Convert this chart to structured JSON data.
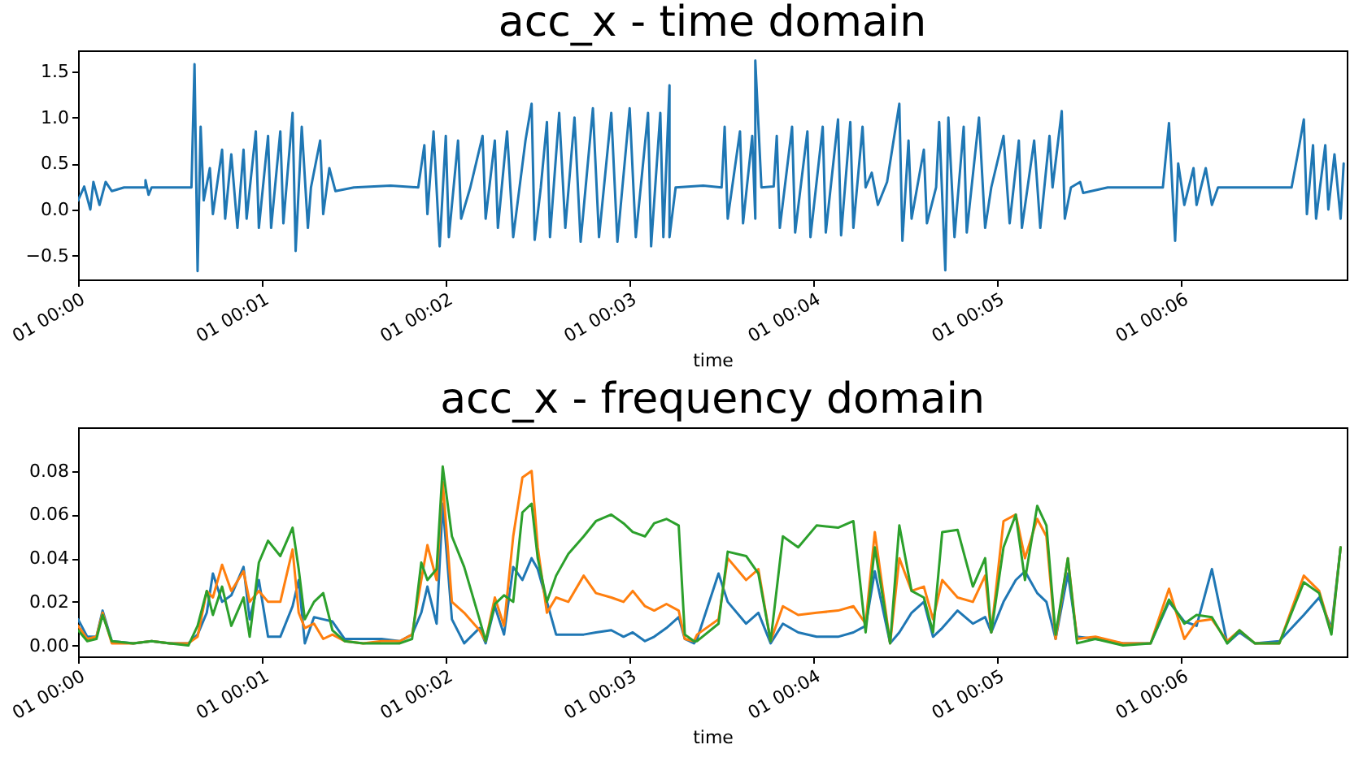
{
  "chart_data": [
    {
      "type": "line",
      "title": "acc_x - time domain",
      "xlabel": "time",
      "color": "#1f77b4",
      "x": [
        "--01-01T00:00:00",
        "--01-01T00:00:02",
        "--01-01T00:00:04",
        "--01-01T00:00:05",
        "--01-01T00:00:07",
        "--01-01T00:00:09",
        "--01-01T00:00:11",
        "--01-01T00:00:15",
        "--01-01T00:00:22",
        "--01-01T00:00:22",
        "--01-01T00:00:23",
        "--01-01T00:00:24",
        "--01-01T00:00:37",
        "--01-01T00:00:38",
        "--01-01T00:00:39",
        "--01-01T00:00:40",
        "--01-01T00:00:41",
        "--01-01T00:00:43",
        "--01-01T00:00:44",
        "--01-01T00:00:47",
        "--01-01T00:00:48",
        "--01-01T00:00:50",
        "--01-01T00:00:52",
        "--01-01T00:00:54",
        "--01-01T00:00:55",
        "--01-01T00:00:58",
        "--01-01T00:00:59",
        "--01-01T00:01:02",
        "--01-01T00:01:03",
        "--01-01T00:01:06",
        "--01-01T00:01:07",
        "--01-01T00:01:10",
        "--01-01T00:01:11",
        "--01-01T00:01:13",
        "--01-01T00:01:15",
        "--01-01T00:01:16",
        "--01-01T00:01:19",
        "--01-01T00:01:20",
        "--01-01T00:01:22",
        "--01-01T00:01:24",
        "--01-01T00:01:30",
        "--01-01T00:01:42",
        "--01-01T00:01:51",
        "--01-01T00:01:53",
        "--01-01T00:01:54",
        "--01-01T00:01:56",
        "--01-01T00:01:58",
        "--01-01T00:02:00",
        "--01-01T00:02:01",
        "--01-01T00:02:04",
        "--01-01T00:02:05",
        "--01-01T00:02:08",
        "--01-01T00:02:12",
        "--01-01T00:02:13",
        "--01-01T00:02:16",
        "--01-01T00:02:17",
        "--01-01T00:02:20",
        "--01-01T00:02:22",
        "--01-01T00:02:26",
        "--01-01T00:02:28",
        "--01-01T00:02:29",
        "--01-01T00:02:31",
        "--01-01T00:02:33",
        "--01-01T00:02:34",
        "--01-01T00:02:37",
        "--01-01T00:02:39",
        "--01-01T00:02:42",
        "--01-01T00:02:44",
        "--01-01T00:02:48",
        "--01-01T00:02:50",
        "--01-01T00:02:54",
        "--01-01T00:02:56",
        "--01-01T00:03:00",
        "--01-01T00:03:02",
        "--01-01T00:03:06",
        "--01-01T00:03:07",
        "--01-01T00:03:10",
        "--01-01T00:03:11",
        "--01-01T00:03:13",
        "--01-01T00:03:13",
        "--01-01T00:03:15",
        "--01-01T00:03:24",
        "--01-01T00:03:30",
        "--01-01T00:03:31",
        "--01-01T00:03:32",
        "--01-01T00:03:36",
        "--01-01T00:03:37",
        "--01-01T00:03:40",
        "--01-01T00:03:41",
        "--01-01T00:03:41",
        "--01-01T00:03:43",
        "--01-01T00:03:47",
        "--01-01T00:03:48",
        "--01-01T00:03:49",
        "--01-01T00:03:53",
        "--01-01T00:03:54",
        "--01-01T00:03:58",
        "--01-01T00:03:59",
        "--01-01T00:04:03",
        "--01-01T00:04:04",
        "--01-01T00:04:08",
        "--01-01T00:04:09",
        "--01-01T00:04:12",
        "--01-01T00:04:13",
        "--01-01T00:04:16",
        "--01-01T00:04:17",
        "--01-01T00:04:19",
        "--01-01T00:04:21",
        "--01-01T00:04:24",
        "--01-01T00:04:28",
        "--01-01T00:04:29",
        "--01-01T00:04:31",
        "--01-01T00:04:32",
        "--01-01T00:04:36",
        "--01-01T00:04:37",
        "--01-01T00:04:40",
        "--01-01T00:04:41",
        "--01-01T00:04:43",
        "--01-01T00:04:44",
        "--01-01T00:04:46",
        "--01-01T00:04:49",
        "--01-01T00:04:50",
        "--01-01T00:04:54",
        "--01-01T00:04:56",
        "--01-01T00:04:58",
        "--01-01T00:05:02",
        "--01-01T00:05:04",
        "--01-01T00:05:07",
        "--01-01T00:05:08",
        "--01-01T00:05:12",
        "--01-01T00:05:14",
        "--01-01T00:05:17",
        "--01-01T00:05:18",
        "--01-01T00:05:21",
        "--01-01T00:05:22",
        "--01-01T00:05:24",
        "--01-01T00:05:27",
        "--01-01T00:05:28",
        "--01-01T00:05:36",
        "--01-01T00:05:54",
        "--01-01T00:05:56",
        "--01-01T00:05:58",
        "--01-01T00:05:59",
        "--01-01T00:06:01",
        "--01-01T00:06:04",
        "--01-01T00:06:05",
        "--01-01T00:06:08",
        "--01-01T00:06:10",
        "--01-01T00:06:12",
        "--01-01T00:06:36",
        "--01-01T00:06:38",
        "--01-01T00:06:40",
        "--01-01T00:06:41",
        "--01-01T00:06:43",
        "--01-01T00:06:44",
        "--01-01T00:06:47",
        "--01-01T00:06:48",
        "--01-01T00:06:50",
        "--01-01T00:06:52",
        "--01-01T00:06:53"
      ],
      "values": [
        0.1,
        0.25,
        0.0,
        0.3,
        0.05,
        0.3,
        0.2,
        0.24,
        0.24,
        0.32,
        0.16,
        0.24,
        0.24,
        1.58,
        -0.67,
        0.9,
        0.1,
        0.45,
        -0.05,
        0.65,
        -0.1,
        0.6,
        -0.2,
        0.65,
        -0.1,
        0.85,
        -0.2,
        0.8,
        -0.2,
        0.85,
        -0.15,
        1.05,
        -0.45,
        0.9,
        -0.2,
        0.24,
        0.75,
        -0.05,
        0.45,
        0.2,
        0.24,
        0.26,
        0.24,
        0.7,
        -0.05,
        0.85,
        -0.4,
        0.8,
        -0.3,
        0.75,
        -0.1,
        0.24,
        0.8,
        -0.1,
        0.75,
        -0.2,
        0.85,
        -0.3,
        0.75,
        1.15,
        -0.33,
        0.24,
        0.95,
        -0.3,
        1.05,
        -0.2,
        1.0,
        -0.35,
        1.1,
        -0.3,
        1.05,
        -0.35,
        1.1,
        -0.3,
        1.05,
        -0.4,
        1.05,
        -0.3,
        1.35,
        -0.3,
        0.24,
        0.26,
        0.24,
        0.9,
        -0.1,
        0.85,
        -0.15,
        0.8,
        -0.1,
        1.62,
        0.24,
        0.25,
        0.8,
        -0.2,
        0.9,
        -0.25,
        0.85,
        -0.3,
        0.9,
        -0.25,
        0.98,
        -0.28,
        0.95,
        -0.2,
        0.9,
        0.24,
        0.4,
        0.05,
        0.3,
        1.15,
        -0.34,
        0.75,
        -0.1,
        0.65,
        -0.15,
        0.24,
        0.95,
        -0.66,
        1.0,
        -0.3,
        0.9,
        -0.25,
        1.0,
        -0.2,
        0.24,
        0.8,
        -0.15,
        0.75,
        -0.2,
        0.75,
        -0.2,
        0.8,
        0.24,
        1.07,
        -0.1,
        0.24,
        0.3,
        0.18,
        0.24,
        0.24,
        0.94,
        -0.34,
        0.5,
        0.05,
        0.45,
        0.05,
        0.45,
        0.05,
        0.24,
        0.24,
        0.6,
        0.98,
        -0.05,
        0.7,
        -0.1,
        0.7,
        0.0,
        0.6,
        -0.1,
        0.5
      ],
      "xlim": [
        "--01-01T00:00:00",
        "--01-01T00:06:54"
      ],
      "xticks": [
        {
          "value": "--01-01T00:00:00",
          "label": "01 00:00"
        },
        {
          "value": "--01-01T00:01:00",
          "label": "01 00:01"
        },
        {
          "value": "--01-01T00:02:00",
          "label": "01 00:02"
        },
        {
          "value": "--01-01T00:03:00",
          "label": "01 00:03"
        },
        {
          "value": "--01-01T00:04:00",
          "label": "01 00:04"
        },
        {
          "value": "--01-01T00:05:00",
          "label": "01 00:05"
        },
        {
          "value": "--01-01T00:06:00",
          "label": "01 00:06"
        }
      ],
      "ylim": [
        -0.76,
        1.73
      ],
      "yticks": [
        {
          "value": -0.5,
          "label": "−0.5"
        },
        {
          "value": 0,
          "label": "0.0"
        },
        {
          "value": 0.5,
          "label": "0.5"
        },
        {
          "value": 1,
          "label": "1.0"
        },
        {
          "value": 1.5,
          "label": "1.5"
        }
      ]
    },
    {
      "type": "line",
      "title": "acc_x - frequency domain",
      "xlabel": "time",
      "x": [
        "--01-01T00:00:00",
        "--01-01T00:00:03",
        "--01-01T00:00:06",
        "--01-01T00:00:08",
        "--01-01T00:00:11",
        "--01-01T00:00:18",
        "--01-01T00:00:24",
        "--01-01T00:00:30",
        "--01-01T00:00:36",
        "--01-01T00:00:39",
        "--01-01T00:00:42",
        "--01-01T00:00:44",
        "--01-01T00:00:47",
        "--01-01T00:00:50",
        "--01-01T00:00:54",
        "--01-01T00:00:56",
        "--01-01T00:00:59",
        "--01-01T00:01:02",
        "--01-01T00:01:06",
        "--01-01T00:01:10",
        "--01-01T00:01:12",
        "--01-01T00:01:14",
        "--01-01T00:01:17",
        "--01-01T00:01:20",
        "--01-01T00:01:23",
        "--01-01T00:01:27",
        "--01-01T00:01:33",
        "--01-01T00:01:39",
        "--01-01T00:01:45",
        "--01-01T00:01:49",
        "--01-01T00:01:52",
        "--01-01T00:01:54",
        "--01-01T00:01:57",
        "--01-01T00:01:59",
        "--01-01T00:02:02",
        "--01-01T00:02:06",
        "--01-01T00:02:11",
        "--01-01T00:02:13",
        "--01-01T00:02:16",
        "--01-01T00:02:19",
        "--01-01T00:02:22",
        "--01-01T00:02:25",
        "--01-01T00:02:28",
        "--01-01T00:02:30",
        "--01-01T00:02:33",
        "--01-01T00:02:36",
        "--01-01T00:02:40",
        "--01-01T00:02:45",
        "--01-01T00:02:49",
        "--01-01T00:02:54",
        "--01-01T00:02:58",
        "--01-01T00:03:01",
        "--01-01T00:03:05",
        "--01-01T00:03:08",
        "--01-01T00:03:12",
        "--01-01T00:03:16",
        "--01-01T00:03:18",
        "--01-01T00:03:21",
        "--01-01T00:03:22",
        "--01-01T00:03:29",
        "--01-01T00:03:32",
        "--01-01T00:03:38",
        "--01-01T00:03:42",
        "--01-01T00:03:46",
        "--01-01T00:03:50",
        "--01-01T00:03:55",
        "--01-01T00:04:01",
        "--01-01T00:04:08",
        "--01-01T00:04:13",
        "--01-01T00:04:17",
        "--01-01T00:04:20",
        "--01-01T00:04:25",
        "--01-01T00:04:28",
        "--01-01T00:04:32",
        "--01-01T00:04:36",
        "--01-01T00:04:39",
        "--01-01T00:04:42",
        "--01-01T00:04:47",
        "--01-01T00:04:52",
        "--01-01T00:04:56",
        "--01-01T00:04:58",
        "--01-01T00:05:02",
        "--01-01T00:05:06",
        "--01-01T00:05:09",
        "--01-01T00:05:13",
        "--01-01T00:05:16",
        "--01-01T00:05:19",
        "--01-01T00:05:23",
        "--01-01T00:05:26",
        "--01-01T00:05:32",
        "--01-01T00:05:41",
        "--01-01T00:05:50",
        "--01-01T00:05:56",
        "--01-01T00:06:01",
        "--01-01T00:06:05",
        "--01-01T00:06:10",
        "--01-01T00:06:15",
        "--01-01T00:06:19",
        "--01-01T00:06:24",
        "--01-01T00:06:32",
        "--01-01T00:06:40",
        "--01-01T00:06:45",
        "--01-01T00:06:49",
        "--01-01T00:06:52"
      ],
      "series": [
        {
          "color": "#1f77b4",
          "values": [
            0.012,
            0.004,
            0.004,
            0.016,
            0.002,
            0.001,
            0.002,
            0.001,
            0.001,
            0.005,
            0.015,
            0.033,
            0.02,
            0.023,
            0.036,
            0.012,
            0.03,
            0.004,
            0.004,
            0.018,
            0.03,
            0.001,
            0.013,
            0.012,
            0.011,
            0.003,
            0.003,
            0.003,
            0.002,
            0.005,
            0.015,
            0.027,
            0.01,
            0.065,
            0.012,
            0.001,
            0.008,
            0.001,
            0.018,
            0.005,
            0.036,
            0.03,
            0.04,
            0.035,
            0.02,
            0.005,
            0.005,
            0.005,
            0.006,
            0.007,
            0.004,
            0.006,
            0.002,
            0.004,
            0.008,
            0.013,
            0.003,
            0.001,
            0.003,
            0.033,
            0.02,
            0.01,
            0.015,
            0.001,
            0.01,
            0.006,
            0.004,
            0.004,
            0.006,
            0.009,
            0.034,
            0.001,
            0.006,
            0.015,
            0.02,
            0.004,
            0.008,
            0.016,
            0.01,
            0.013,
            0.006,
            0.02,
            0.03,
            0.034,
            0.024,
            0.02,
            0.003,
            0.033,
            0.004,
            0.003,
            0.001,
            0.001,
            0.02,
            0.011,
            0.009,
            0.035,
            0.001,
            0.006,
            0.001,
            0.002,
            0.014,
            0.022,
            0.008,
            0.045
          ]
        },
        {
          "color": "#ff7f0e",
          "values": [
            0.009,
            0.003,
            0.004,
            0.015,
            0.001,
            0.001,
            0.002,
            0.001,
            0.001,
            0.004,
            0.025,
            0.022,
            0.037,
            0.025,
            0.034,
            0.02,
            0.025,
            0.02,
            0.02,
            0.044,
            0.015,
            0.008,
            0.01,
            0.003,
            0.005,
            0.002,
            0.001,
            0.002,
            0.002,
            0.005,
            0.03,
            0.046,
            0.03,
            0.075,
            0.02,
            0.015,
            0.007,
            0.002,
            0.022,
            0.009,
            0.05,
            0.077,
            0.08,
            0.045,
            0.015,
            0.022,
            0.02,
            0.032,
            0.024,
            0.022,
            0.02,
            0.025,
            0.018,
            0.016,
            0.019,
            0.016,
            0.003,
            0.002,
            0.005,
            0.012,
            0.04,
            0.03,
            0.035,
            0.002,
            0.018,
            0.014,
            0.015,
            0.016,
            0.018,
            0.01,
            0.052,
            0.001,
            0.04,
            0.025,
            0.027,
            0.012,
            0.03,
            0.022,
            0.02,
            0.032,
            0.006,
            0.057,
            0.06,
            0.04,
            0.058,
            0.05,
            0.003,
            0.04,
            0.003,
            0.004,
            0.001,
            0.001,
            0.026,
            0.003,
            0.011,
            0.012,
            0.002,
            0.007,
            0.001,
            0.001,
            0.032,
            0.025,
            0.006,
            0.045
          ]
        },
        {
          "color": "#2ca02c",
          "values": [
            0.007,
            0.002,
            0.003,
            0.014,
            0.002,
            0.001,
            0.002,
            0.001,
            0.0,
            0.009,
            0.025,
            0.014,
            0.027,
            0.009,
            0.022,
            0.004,
            0.038,
            0.048,
            0.041,
            0.054,
            0.035,
            0.012,
            0.02,
            0.024,
            0.007,
            0.002,
            0.001,
            0.001,
            0.001,
            0.003,
            0.038,
            0.03,
            0.035,
            0.082,
            0.05,
            0.036,
            0.012,
            0.002,
            0.019,
            0.023,
            0.02,
            0.061,
            0.065,
            0.04,
            0.02,
            0.032,
            0.042,
            0.05,
            0.057,
            0.06,
            0.056,
            0.052,
            0.05,
            0.056,
            0.058,
            0.055,
            0.005,
            0.002,
            0.002,
            0.01,
            0.043,
            0.041,
            0.033,
            0.002,
            0.05,
            0.045,
            0.055,
            0.054,
            0.057,
            0.006,
            0.045,
            0.001,
            0.055,
            0.025,
            0.022,
            0.006,
            0.052,
            0.053,
            0.027,
            0.04,
            0.006,
            0.045,
            0.06,
            0.03,
            0.064,
            0.055,
            0.005,
            0.04,
            0.001,
            0.003,
            0.0,
            0.001,
            0.021,
            0.01,
            0.014,
            0.013,
            0.001,
            0.007,
            0.001,
            0.001,
            0.029,
            0.024,
            0.005,
            0.045
          ]
        }
      ],
      "xlim": [
        "--01-01T00:00:00",
        "--01-01T00:06:54"
      ],
      "xticks": [
        {
          "value": "--01-01T00:00:00",
          "label": "01 00:00"
        },
        {
          "value": "--01-01T00:01:00",
          "label": "01 00:01"
        },
        {
          "value": "--01-01T00:02:00",
          "label": "01 00:02"
        },
        {
          "value": "--01-01T00:03:00",
          "label": "01 00:03"
        },
        {
          "value": "--01-01T00:04:00",
          "label": "01 00:04"
        },
        {
          "value": "--01-01T00:05:00",
          "label": "01 00:05"
        },
        {
          "value": "--01-01T00:06:00",
          "label": "01 00:06"
        }
      ],
      "ylim": [
        -0.005,
        0.1
      ],
      "yticks": [
        {
          "value": 0,
          "label": "0.00"
        },
        {
          "value": 0.02,
          "label": "0.02"
        },
        {
          "value": 0.04,
          "label": "0.04"
        },
        {
          "value": 0.06,
          "label": "0.06"
        },
        {
          "value": 0.08,
          "label": "0.08"
        }
      ]
    }
  ]
}
